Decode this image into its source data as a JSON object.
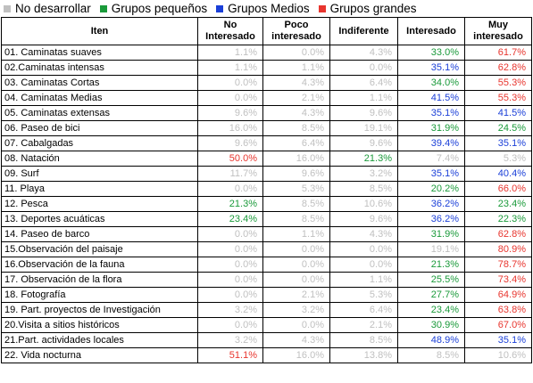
{
  "legend": {
    "items": [
      {
        "label": "No desarrollar",
        "color": "#c0c0c0"
      },
      {
        "label": "Grupos pequeños",
        "color": "#1a9a3a"
      },
      {
        "label": "Grupos Medios",
        "color": "#1a3fd8"
      },
      {
        "label": "Grupos grandes",
        "color": "#e8352e"
      }
    ]
  },
  "table": {
    "header": [
      "Iten",
      "No Interesado",
      "Poco interesado",
      "Indiferente",
      "Interesado",
      "Muy interesado"
    ],
    "rows": [
      {
        "item": "01. Caminatas suaves",
        "cells": [
          {
            "text": "1.1%",
            "color": "#c0c0c0"
          },
          {
            "text": "0.0%",
            "color": "#c0c0c0"
          },
          {
            "text": "4.3%",
            "color": "#c0c0c0"
          },
          {
            "text": "33.0%",
            "color": "#1a9a3a"
          },
          {
            "text": "61.7%",
            "color": "#e8352e"
          }
        ]
      },
      {
        "item": "02.Caminatas intensas",
        "cells": [
          {
            "text": "1.1%",
            "color": "#c0c0c0"
          },
          {
            "text": "1.1%",
            "color": "#c0c0c0"
          },
          {
            "text": "0.0%",
            "color": "#c0c0c0"
          },
          {
            "text": "35.1%",
            "color": "#1a3fd8"
          },
          {
            "text": "62.8%",
            "color": "#e8352e"
          }
        ]
      },
      {
        "item": "03. Caminatas Cortas",
        "cells": [
          {
            "text": "0.0%",
            "color": "#c0c0c0"
          },
          {
            "text": "4.3%",
            "color": "#c0c0c0"
          },
          {
            "text": "6.4%",
            "color": "#c0c0c0"
          },
          {
            "text": "34.0%",
            "color": "#1a9a3a"
          },
          {
            "text": "55.3%",
            "color": "#e8352e"
          }
        ]
      },
      {
        "item": "04. Caminatas Medias",
        "cells": [
          {
            "text": "0.0%",
            "color": "#c0c0c0"
          },
          {
            "text": "2.1%",
            "color": "#c0c0c0"
          },
          {
            "text": "1.1%",
            "color": "#c0c0c0"
          },
          {
            "text": "41.5%",
            "color": "#1a3fd8"
          },
          {
            "text": "55.3%",
            "color": "#e8352e"
          }
        ]
      },
      {
        "item": "05. Caminatas extensas",
        "cells": [
          {
            "text": "9.6%",
            "color": "#c0c0c0"
          },
          {
            "text": "4.3%",
            "color": "#c0c0c0"
          },
          {
            "text": "9.6%",
            "color": "#c0c0c0"
          },
          {
            "text": "35.1%",
            "color": "#1a3fd8"
          },
          {
            "text": "41.5%",
            "color": "#1a3fd8"
          }
        ]
      },
      {
        "item": "06. Paseo de bici",
        "cells": [
          {
            "text": "16.0%",
            "color": "#c0c0c0"
          },
          {
            "text": "8.5%",
            "color": "#c0c0c0"
          },
          {
            "text": "19.1%",
            "color": "#c0c0c0"
          },
          {
            "text": "31.9%",
            "color": "#1a9a3a"
          },
          {
            "text": "24.5%",
            "color": "#1a9a3a"
          }
        ]
      },
      {
        "item": "07. Cabalgadas",
        "cells": [
          {
            "text": "9.6%",
            "color": "#c0c0c0"
          },
          {
            "text": "6.4%",
            "color": "#c0c0c0"
          },
          {
            "text": "9.6%",
            "color": "#c0c0c0"
          },
          {
            "text": "39.4%",
            "color": "#1a3fd8"
          },
          {
            "text": "35.1%",
            "color": "#1a3fd8"
          }
        ]
      },
      {
        "item": "08. Natación",
        "cells": [
          {
            "text": "50.0%",
            "color": "#e8352e"
          },
          {
            "text": "16.0%",
            "color": "#c0c0c0"
          },
          {
            "text": "21.3%",
            "color": "#1a9a3a"
          },
          {
            "text": "7.4%",
            "color": "#c0c0c0"
          },
          {
            "text": "5.3%",
            "color": "#c0c0c0"
          }
        ]
      },
      {
        "item": "09. Surf",
        "cells": [
          {
            "text": "11.7%",
            "color": "#c0c0c0"
          },
          {
            "text": "9.6%",
            "color": "#c0c0c0"
          },
          {
            "text": "3.2%",
            "color": "#c0c0c0"
          },
          {
            "text": "35.1%",
            "color": "#1a3fd8"
          },
          {
            "text": "40.4%",
            "color": "#1a3fd8"
          }
        ]
      },
      {
        "item": "11. Playa",
        "cells": [
          {
            "text": "0.0%",
            "color": "#c0c0c0"
          },
          {
            "text": "5.3%",
            "color": "#c0c0c0"
          },
          {
            "text": "8.5%",
            "color": "#c0c0c0"
          },
          {
            "text": "20.2%",
            "color": "#1a9a3a"
          },
          {
            "text": "66.0%",
            "color": "#e8352e"
          }
        ]
      },
      {
        "item": "12. Pesca",
        "cells": [
          {
            "text": "21.3%",
            "color": "#1a9a3a"
          },
          {
            "text": "8.5%",
            "color": "#c0c0c0"
          },
          {
            "text": "10.6%",
            "color": "#c0c0c0"
          },
          {
            "text": "36.2%",
            "color": "#1a3fd8"
          },
          {
            "text": "23.4%",
            "color": "#1a9a3a"
          }
        ]
      },
      {
        "item": "13. Deportes acuáticas",
        "cells": [
          {
            "text": "23.4%",
            "color": "#1a9a3a"
          },
          {
            "text": "8.5%",
            "color": "#c0c0c0"
          },
          {
            "text": "9.6%",
            "color": "#c0c0c0"
          },
          {
            "text": "36.2%",
            "color": "#1a3fd8"
          },
          {
            "text": "22.3%",
            "color": "#1a9a3a"
          }
        ]
      },
      {
        "item": "14. Paseo de barco",
        "cells": [
          {
            "text": "0.0%",
            "color": "#c0c0c0"
          },
          {
            "text": "1.1%",
            "color": "#c0c0c0"
          },
          {
            "text": "4.3%",
            "color": "#c0c0c0"
          },
          {
            "text": "31.9%",
            "color": "#1a9a3a"
          },
          {
            "text": "62.8%",
            "color": "#e8352e"
          }
        ]
      },
      {
        "item": "15.Observación del paisaje",
        "cells": [
          {
            "text": "0.0%",
            "color": "#c0c0c0"
          },
          {
            "text": "0.0%",
            "color": "#c0c0c0"
          },
          {
            "text": "0.0%",
            "color": "#c0c0c0"
          },
          {
            "text": "19.1%",
            "color": "#c0c0c0"
          },
          {
            "text": "80.9%",
            "color": "#e8352e"
          }
        ]
      },
      {
        "item": "16.Observación de la fauna",
        "cells": [
          {
            "text": "0.0%",
            "color": "#c0c0c0"
          },
          {
            "text": "0.0%",
            "color": "#c0c0c0"
          },
          {
            "text": "0.0%",
            "color": "#c0c0c0"
          },
          {
            "text": "21.3%",
            "color": "#1a9a3a"
          },
          {
            "text": "78.7%",
            "color": "#e8352e"
          }
        ]
      },
      {
        "item": "17. Observación de la flora",
        "cells": [
          {
            "text": "0.0%",
            "color": "#c0c0c0"
          },
          {
            "text": "0.0%",
            "color": "#c0c0c0"
          },
          {
            "text": "1.1%",
            "color": "#c0c0c0"
          },
          {
            "text": "25.5%",
            "color": "#1a9a3a"
          },
          {
            "text": "73.4%",
            "color": "#e8352e"
          }
        ]
      },
      {
        "item": "18. Fotografía",
        "cells": [
          {
            "text": "0.0%",
            "color": "#c0c0c0"
          },
          {
            "text": "2.1%",
            "color": "#c0c0c0"
          },
          {
            "text": "5.3%",
            "color": "#c0c0c0"
          },
          {
            "text": "27.7%",
            "color": "#1a9a3a"
          },
          {
            "text": "64.9%",
            "color": "#e8352e"
          }
        ]
      },
      {
        "item": "19. Part. proyectos de Investigación",
        "cells": [
          {
            "text": "3.2%",
            "color": "#c0c0c0"
          },
          {
            "text": "3.2%",
            "color": "#c0c0c0"
          },
          {
            "text": "6.4%",
            "color": "#c0c0c0"
          },
          {
            "text": "23.4%",
            "color": "#1a9a3a"
          },
          {
            "text": "63.8%",
            "color": "#e8352e"
          }
        ]
      },
      {
        "item": "20.Visita a sitios  históricos",
        "cells": [
          {
            "text": "0.0%",
            "color": "#c0c0c0"
          },
          {
            "text": "0.0%",
            "color": "#c0c0c0"
          },
          {
            "text": "2.1%",
            "color": "#c0c0c0"
          },
          {
            "text": "30.9%",
            "color": "#1a9a3a"
          },
          {
            "text": "67.0%",
            "color": "#e8352e"
          }
        ]
      },
      {
        "item": "21.Part. actividades locales",
        "cells": [
          {
            "text": "3.2%",
            "color": "#c0c0c0"
          },
          {
            "text": "4.3%",
            "color": "#c0c0c0"
          },
          {
            "text": "8.5%",
            "color": "#c0c0c0"
          },
          {
            "text": "48.9%",
            "color": "#1a3fd8"
          },
          {
            "text": "35.1%",
            "color": "#1a3fd8"
          }
        ]
      },
      {
        "item": "22. Vida nocturna",
        "cells": [
          {
            "text": "51.1%",
            "color": "#e8352e"
          },
          {
            "text": "16.0%",
            "color": "#c0c0c0"
          },
          {
            "text": "13.8%",
            "color": "#c0c0c0"
          },
          {
            "text": "8.5%",
            "color": "#c0c0c0"
          },
          {
            "text": "10.6%",
            "color": "#c0c0c0"
          }
        ]
      }
    ]
  }
}
